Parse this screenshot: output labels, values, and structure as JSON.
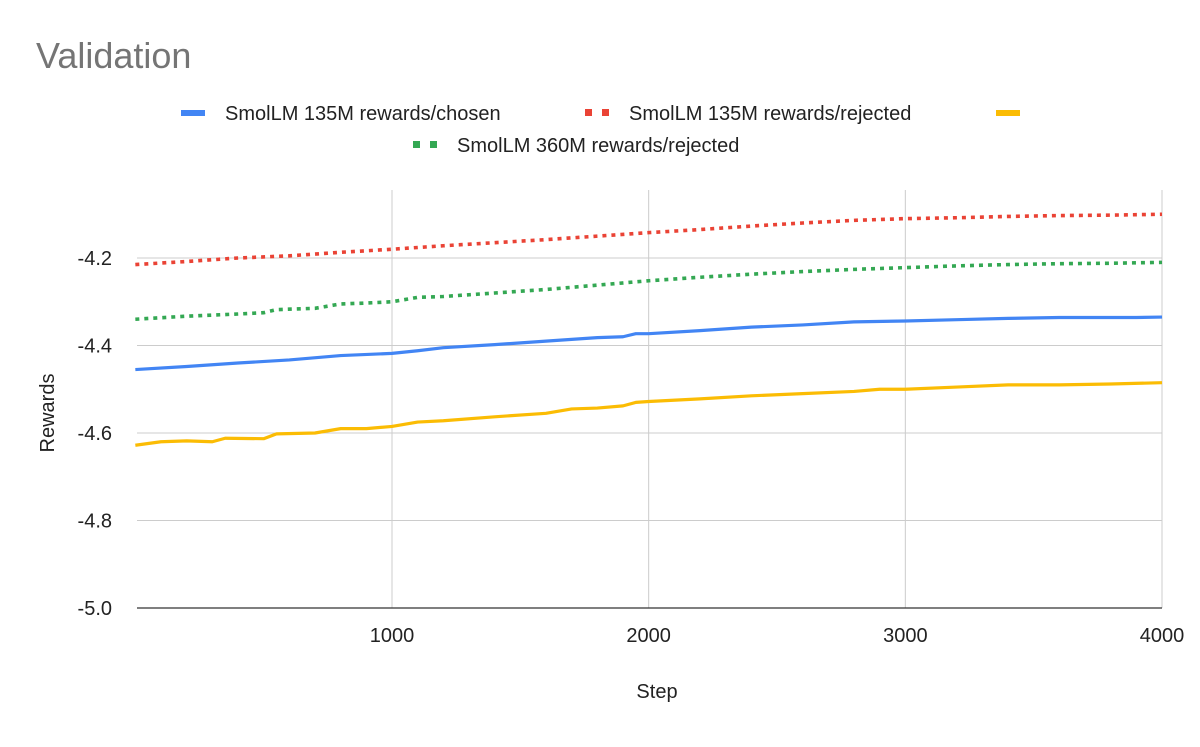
{
  "chart_data": {
    "type": "line",
    "title": "Validation",
    "xlabel": "Step",
    "ylabel": "Rewards",
    "xlim": [
      0,
      4000
    ],
    "ylim": [
      -5.0,
      -4.075
    ],
    "x_ticks": [
      1000,
      2000,
      3000,
      4000
    ],
    "x_tick_labels": [
      "1000",
      "2000",
      "3000",
      "4000"
    ],
    "y_ticks": [
      -5.0,
      -4.8,
      -4.6,
      -4.4,
      -4.2
    ],
    "y_tick_labels": [
      "-5.0",
      "-4.8",
      "-4.6",
      "-4.4",
      "-4.2"
    ],
    "grid": true,
    "legend_position": "top",
    "series": [
      {
        "name": "SmolLM 135M rewards/chosen",
        "color": "#4285F4",
        "style": "solid",
        "points": [
          [
            0,
            -4.455
          ],
          [
            200,
            -4.448
          ],
          [
            400,
            -4.44
          ],
          [
            600,
            -4.433
          ],
          [
            800,
            -4.423
          ],
          [
            1000,
            -4.418
          ],
          [
            1100,
            -4.412
          ],
          [
            1200,
            -4.405
          ],
          [
            1400,
            -4.398
          ],
          [
            1600,
            -4.39
          ],
          [
            1800,
            -4.382
          ],
          [
            1900,
            -4.38
          ],
          [
            1950,
            -4.373
          ],
          [
            2000,
            -4.373
          ],
          [
            2200,
            -4.366
          ],
          [
            2400,
            -4.358
          ],
          [
            2600,
            -4.353
          ],
          [
            2800,
            -4.346
          ],
          [
            3000,
            -4.344
          ],
          [
            3200,
            -4.341
          ],
          [
            3400,
            -4.338
          ],
          [
            3600,
            -4.336
          ],
          [
            3800,
            -4.336
          ],
          [
            3900,
            -4.336
          ],
          [
            4000,
            -4.335
          ]
        ]
      },
      {
        "name": "SmolLM 135M rewards/rejected",
        "color": "#EA4335",
        "style": "dotted",
        "points": [
          [
            0,
            -4.215
          ],
          [
            200,
            -4.208
          ],
          [
            400,
            -4.2
          ],
          [
            600,
            -4.195
          ],
          [
            800,
            -4.187
          ],
          [
            1000,
            -4.18
          ],
          [
            1200,
            -4.172
          ],
          [
            1400,
            -4.165
          ],
          [
            1600,
            -4.158
          ],
          [
            1800,
            -4.15
          ],
          [
            2000,
            -4.142
          ],
          [
            2200,
            -4.135
          ],
          [
            2400,
            -4.127
          ],
          [
            2600,
            -4.12
          ],
          [
            2800,
            -4.114
          ],
          [
            3000,
            -4.11
          ],
          [
            3200,
            -4.108
          ],
          [
            3400,
            -4.105
          ],
          [
            3600,
            -4.103
          ],
          [
            3800,
            -4.102
          ],
          [
            4000,
            -4.1
          ]
        ]
      },
      {
        "name": "",
        "color": "#FBBC04",
        "style": "solid",
        "points": [
          [
            0,
            -4.628
          ],
          [
            100,
            -4.62
          ],
          [
            200,
            -4.618
          ],
          [
            300,
            -4.62
          ],
          [
            350,
            -4.612
          ],
          [
            500,
            -4.613
          ],
          [
            550,
            -4.602
          ],
          [
            700,
            -4.6
          ],
          [
            800,
            -4.59
          ],
          [
            900,
            -4.59
          ],
          [
            1000,
            -4.585
          ],
          [
            1100,
            -4.575
          ],
          [
            1200,
            -4.572
          ],
          [
            1400,
            -4.563
          ],
          [
            1600,
            -4.555
          ],
          [
            1700,
            -4.545
          ],
          [
            1800,
            -4.543
          ],
          [
            1900,
            -4.538
          ],
          [
            1950,
            -4.53
          ],
          [
            2000,
            -4.528
          ],
          [
            2200,
            -4.522
          ],
          [
            2400,
            -4.515
          ],
          [
            2600,
            -4.51
          ],
          [
            2800,
            -4.505
          ],
          [
            2900,
            -4.5
          ],
          [
            3000,
            -4.5
          ],
          [
            3200,
            -4.495
          ],
          [
            3400,
            -4.49
          ],
          [
            3600,
            -4.49
          ],
          [
            3800,
            -4.488
          ],
          [
            4000,
            -4.485
          ]
        ]
      },
      {
        "name": "SmolLM 360M rewards/rejected",
        "color": "#34A853",
        "style": "dotted",
        "points": [
          [
            0,
            -4.34
          ],
          [
            200,
            -4.333
          ],
          [
            400,
            -4.328
          ],
          [
            500,
            -4.325
          ],
          [
            550,
            -4.318
          ],
          [
            700,
            -4.315
          ],
          [
            800,
            -4.305
          ],
          [
            900,
            -4.303
          ],
          [
            1000,
            -4.3
          ],
          [
            1100,
            -4.29
          ],
          [
            1200,
            -4.288
          ],
          [
            1400,
            -4.28
          ],
          [
            1600,
            -4.272
          ],
          [
            1800,
            -4.262
          ],
          [
            2000,
            -4.252
          ],
          [
            2200,
            -4.244
          ],
          [
            2400,
            -4.237
          ],
          [
            2600,
            -4.231
          ],
          [
            2800,
            -4.226
          ],
          [
            3000,
            -4.222
          ],
          [
            3200,
            -4.218
          ],
          [
            3400,
            -4.215
          ],
          [
            3600,
            -4.213
          ],
          [
            3800,
            -4.212
          ],
          [
            4000,
            -4.21
          ]
        ]
      }
    ]
  }
}
